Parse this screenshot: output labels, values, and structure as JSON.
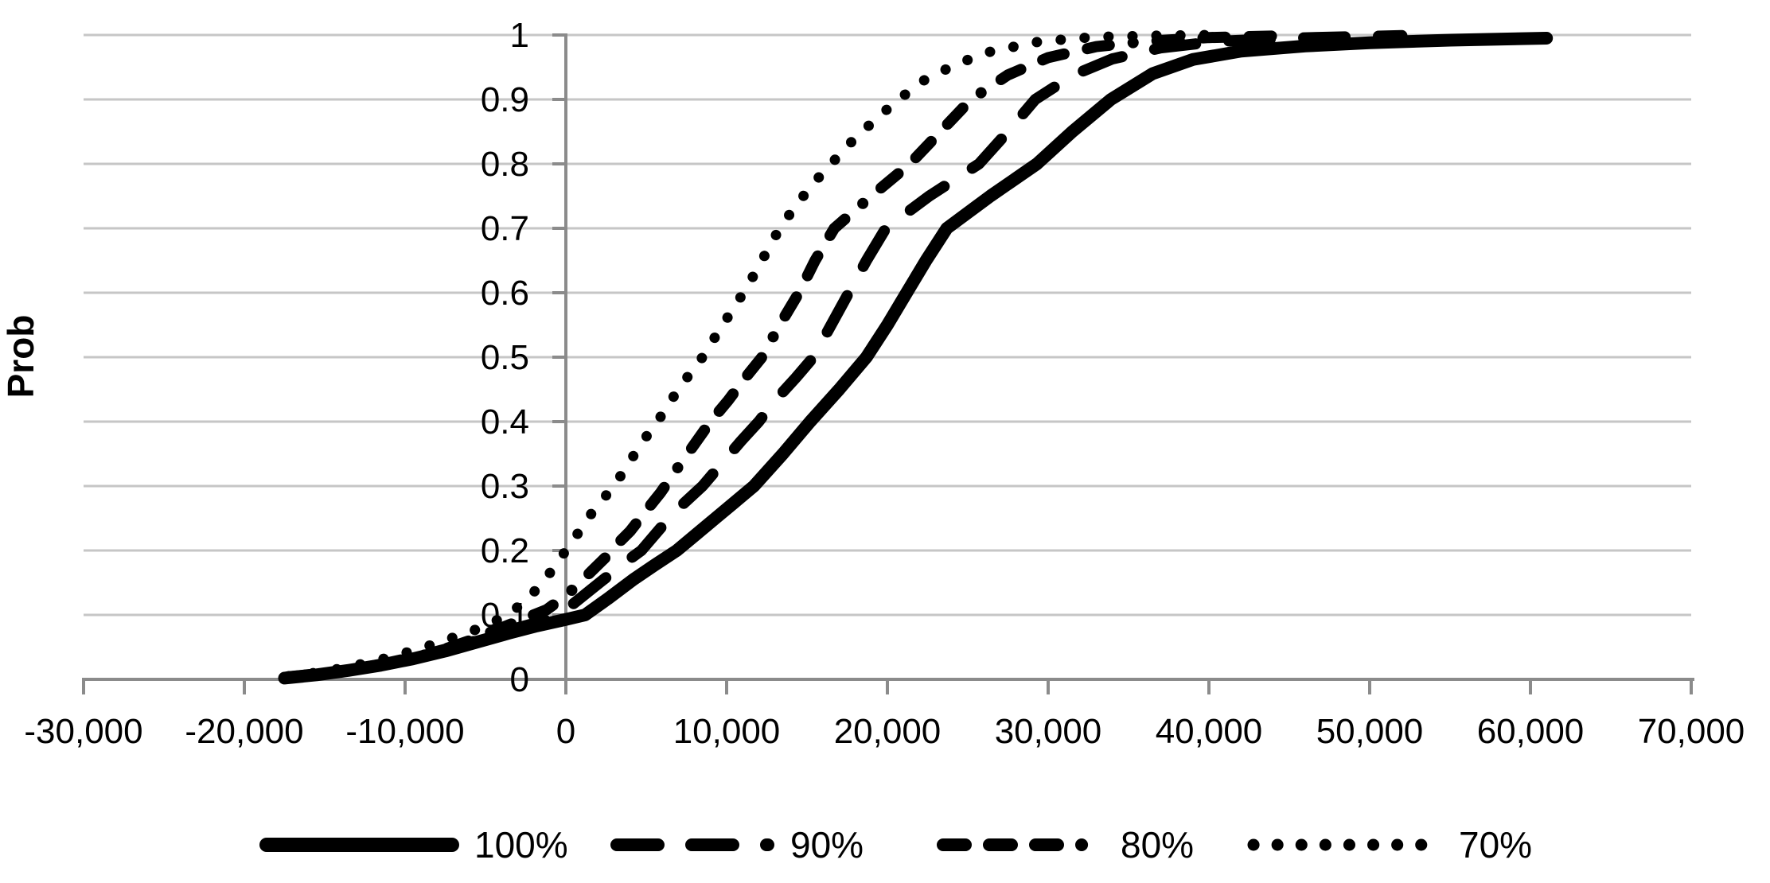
{
  "style": {
    "background": "#ffffff",
    "grid_color": "#c6c6c6",
    "axis_color": "#8b8b8b",
    "text_color": "#000000",
    "curve_color": "#000000"
  },
  "chart_data": {
    "type": "line",
    "variant": "cumulative-distribution",
    "title": "",
    "xlabel": "",
    "ylabel": "Prob",
    "xlim": [
      -30000,
      70000
    ],
    "ylim": [
      0,
      1
    ],
    "grid": "horizontal-only",
    "legend_position": "bottom",
    "x_ticks": [
      -30000,
      -20000,
      -10000,
      0,
      10000,
      20000,
      30000,
      40000,
      50000,
      60000,
      70000
    ],
    "x_tick_labels": [
      "-30,000",
      "-20,000",
      "-10,000",
      "0",
      "10,000",
      "20,000",
      "30,000",
      "40,000",
      "50,000",
      "60,000",
      "70,000"
    ],
    "y_ticks": [
      0,
      0.1,
      0.2,
      0.3,
      0.4,
      0.5,
      0.6,
      0.7,
      0.8,
      0.9,
      1
    ],
    "y_tick_labels": [
      "0",
      "0.1",
      "0.2",
      "0.3",
      "0.4",
      "0.5",
      "0.6",
      "0.7",
      "0.8",
      "0.9",
      "1"
    ],
    "series": [
      {
        "name": "100%",
        "line_style": "solid",
        "color": "#000000",
        "points": [
          [
            -17500,
            0.002
          ],
          [
            -15500,
            0.007
          ],
          [
            -13500,
            0.014
          ],
          [
            -11500,
            0.022
          ],
          [
            -9500,
            0.032
          ],
          [
            -7500,
            0.044
          ],
          [
            -5500,
            0.058
          ],
          [
            -3500,
            0.072
          ],
          [
            -1800,
            0.083
          ],
          [
            0,
            0.093
          ],
          [
            1200,
            0.1
          ],
          [
            2600,
            0.125
          ],
          [
            4200,
            0.155
          ],
          [
            5500,
            0.177
          ],
          [
            6900,
            0.2
          ],
          [
            8100,
            0.225
          ],
          [
            9300,
            0.25
          ],
          [
            10500,
            0.275
          ],
          [
            11700,
            0.3
          ],
          [
            13500,
            0.35
          ],
          [
            15200,
            0.4
          ],
          [
            17000,
            0.45
          ],
          [
            18700,
            0.5
          ],
          [
            20000,
            0.55
          ],
          [
            21200,
            0.6
          ],
          [
            22400,
            0.65
          ],
          [
            23700,
            0.7
          ],
          [
            26400,
            0.75
          ],
          [
            29300,
            0.8
          ],
          [
            31500,
            0.85
          ],
          [
            33900,
            0.9
          ],
          [
            36500,
            0.94
          ],
          [
            39000,
            0.962
          ],
          [
            42000,
            0.975
          ],
          [
            46000,
            0.983
          ],
          [
            50000,
            0.988
          ],
          [
            55000,
            0.992
          ],
          [
            61000,
            0.995
          ]
        ]
      },
      {
        "name": "90%",
        "line_style": "long-dash",
        "color": "#000000",
        "points": [
          [
            -17400,
            0.003
          ],
          [
            -15000,
            0.009
          ],
          [
            -13000,
            0.016
          ],
          [
            -11000,
            0.026
          ],
          [
            -9000,
            0.037
          ],
          [
            -7000,
            0.05
          ],
          [
            -5000,
            0.064
          ],
          [
            -3000,
            0.08
          ],
          [
            -1500,
            0.09
          ],
          [
            -400,
            0.1
          ],
          [
            600,
            0.12
          ],
          [
            1600,
            0.14
          ],
          [
            2600,
            0.16
          ],
          [
            3600,
            0.18
          ],
          [
            4700,
            0.2
          ],
          [
            5900,
            0.235
          ],
          [
            7200,
            0.27
          ],
          [
            8500,
            0.3
          ],
          [
            9700,
            0.335
          ],
          [
            10900,
            0.37
          ],
          [
            12000,
            0.4
          ],
          [
            13100,
            0.435
          ],
          [
            14300,
            0.468
          ],
          [
            15400,
            0.5
          ],
          [
            16500,
            0.55
          ],
          [
            17600,
            0.6
          ],
          [
            18700,
            0.65
          ],
          [
            19900,
            0.7
          ],
          [
            22600,
            0.75
          ],
          [
            25700,
            0.8
          ],
          [
            27500,
            0.85
          ],
          [
            29200,
            0.9
          ],
          [
            31500,
            0.937
          ],
          [
            34000,
            0.963
          ],
          [
            37000,
            0.98
          ],
          [
            40500,
            0.99
          ],
          [
            45000,
            0.995
          ],
          [
            52000,
            0.999
          ]
        ]
      },
      {
        "name": "80%",
        "line_style": "dash-dot",
        "color": "#000000",
        "points": [
          [
            -17300,
            0.004
          ],
          [
            -14500,
            0.011
          ],
          [
            -12000,
            0.02
          ],
          [
            -10000,
            0.03
          ],
          [
            -8000,
            0.043
          ],
          [
            -6000,
            0.06
          ],
          [
            -4000,
            0.08
          ],
          [
            -2500,
            0.095
          ],
          [
            -1200,
            0.108
          ],
          [
            0,
            0.13
          ],
          [
            800,
            0.148
          ],
          [
            1600,
            0.168
          ],
          [
            2500,
            0.19
          ],
          [
            3200,
            0.21
          ],
          [
            4000,
            0.23
          ],
          [
            5000,
            0.262
          ],
          [
            5900,
            0.29
          ],
          [
            7000,
            0.33
          ],
          [
            8000,
            0.365
          ],
          [
            9000,
            0.4
          ],
          [
            10100,
            0.433
          ],
          [
            11100,
            0.466
          ],
          [
            12200,
            0.5
          ],
          [
            13300,
            0.55
          ],
          [
            14500,
            0.6
          ],
          [
            15500,
            0.65
          ],
          [
            16700,
            0.7
          ],
          [
            19000,
            0.75
          ],
          [
            21400,
            0.8
          ],
          [
            23300,
            0.85
          ],
          [
            25200,
            0.9
          ],
          [
            27500,
            0.938
          ],
          [
            30000,
            0.965
          ],
          [
            33000,
            0.982
          ],
          [
            36000,
            0.99
          ],
          [
            40000,
            0.996
          ],
          [
            45000,
            0.999
          ]
        ]
      },
      {
        "name": "70%",
        "line_style": "dot",
        "color": "#000000",
        "points": [
          [
            -17200,
            0.005
          ],
          [
            -15000,
            0.012
          ],
          [
            -13000,
            0.022
          ],
          [
            -11000,
            0.034
          ],
          [
            -9000,
            0.048
          ],
          [
            -7000,
            0.065
          ],
          [
            -5500,
            0.078
          ],
          [
            -4000,
            0.095
          ],
          [
            -3000,
            0.112
          ],
          [
            -2000,
            0.135
          ],
          [
            -1000,
            0.165
          ],
          [
            0,
            0.2
          ],
          [
            900,
            0.232
          ],
          [
            1800,
            0.265
          ],
          [
            3000,
            0.3
          ],
          [
            3900,
            0.335
          ],
          [
            4800,
            0.37
          ],
          [
            5700,
            0.4
          ],
          [
            6600,
            0.435
          ],
          [
            7500,
            0.467
          ],
          [
            8500,
            0.5
          ],
          [
            9500,
            0.54
          ],
          [
            10400,
            0.575
          ],
          [
            11300,
            0.61
          ],
          [
            12300,
            0.655
          ],
          [
            13300,
            0.7
          ],
          [
            14300,
            0.735
          ],
          [
            15400,
            0.77
          ],
          [
            16500,
            0.8
          ],
          [
            17800,
            0.835
          ],
          [
            19300,
            0.87
          ],
          [
            20700,
            0.9
          ],
          [
            22300,
            0.93
          ],
          [
            24300,
            0.955
          ],
          [
            26500,
            0.975
          ],
          [
            29500,
            0.99
          ],
          [
            33000,
            0.997
          ],
          [
            37000,
            0.999
          ],
          [
            40000,
            1.0
          ]
        ]
      }
    ],
    "legend": {
      "items": [
        {
          "label": "100%",
          "line_style": "solid"
        },
        {
          "label": "90%",
          "line_style": "long-dash"
        },
        {
          "label": "80%",
          "line_style": "dash-dot"
        },
        {
          "label": "70%",
          "line_style": "dot"
        }
      ]
    }
  }
}
